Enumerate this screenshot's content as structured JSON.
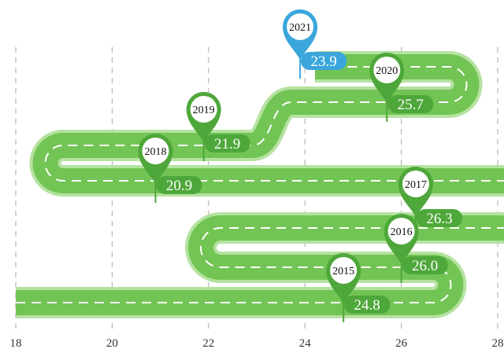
{
  "chart_data": {
    "type": "roadmap",
    "categories": [
      "2015",
      "2016",
      "2017",
      "2018",
      "2019",
      "2020",
      "2021"
    ],
    "values": [
      24.8,
      26.0,
      26.3,
      20.9,
      21.9,
      25.7,
      23.9
    ],
    "value_labels": [
      "24.8",
      "26.0",
      "26.3",
      "20.9",
      "21.9",
      "25.7",
      "23.9"
    ],
    "point_colors": [
      "#4ea73a",
      "#4ea73a",
      "#4ea73a",
      "#4ea73a",
      "#4ea73a",
      "#4ea73a",
      "#3aa6dc"
    ],
    "xlim": [
      18,
      28
    ],
    "xticks": [
      18,
      20,
      22,
      24,
      26,
      28
    ],
    "grid": true
  }
}
